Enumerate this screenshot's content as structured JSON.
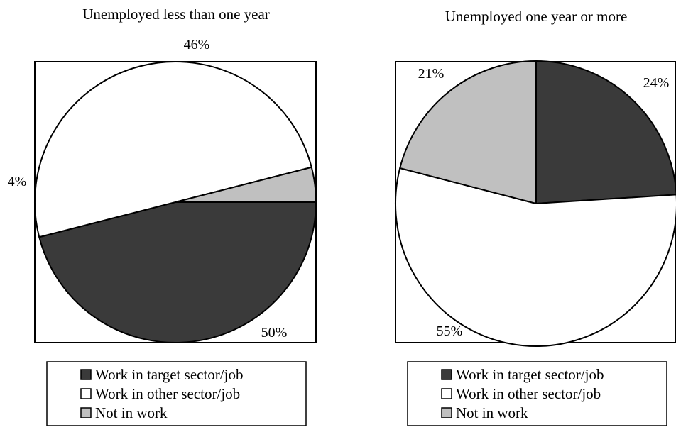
{
  "chart_data": [
    {
      "type": "pie",
      "title": "Unemployed less than one year",
      "categories": [
        "Work in target sector/job",
        "Work in other sector/job",
        "Not in work"
      ],
      "values": [
        46,
        50,
        4
      ],
      "labels": [
        "46%",
        "50%",
        "4%"
      ],
      "colors": [
        "#3a3a3a",
        "#ffffff",
        "#c0c0c0"
      ],
      "legend": "bottom"
    },
    {
      "type": "pie",
      "title": "Unemployed one year or more",
      "categories": [
        "Work in target sector/job",
        "Work in other sector/job",
        "Not in work"
      ],
      "values": [
        24,
        55,
        21
      ],
      "labels": [
        "24%",
        "55%",
        "21%"
      ],
      "colors": [
        "#3a3a3a",
        "#ffffff",
        "#c0c0c0"
      ],
      "legend": "bottom"
    }
  ]
}
